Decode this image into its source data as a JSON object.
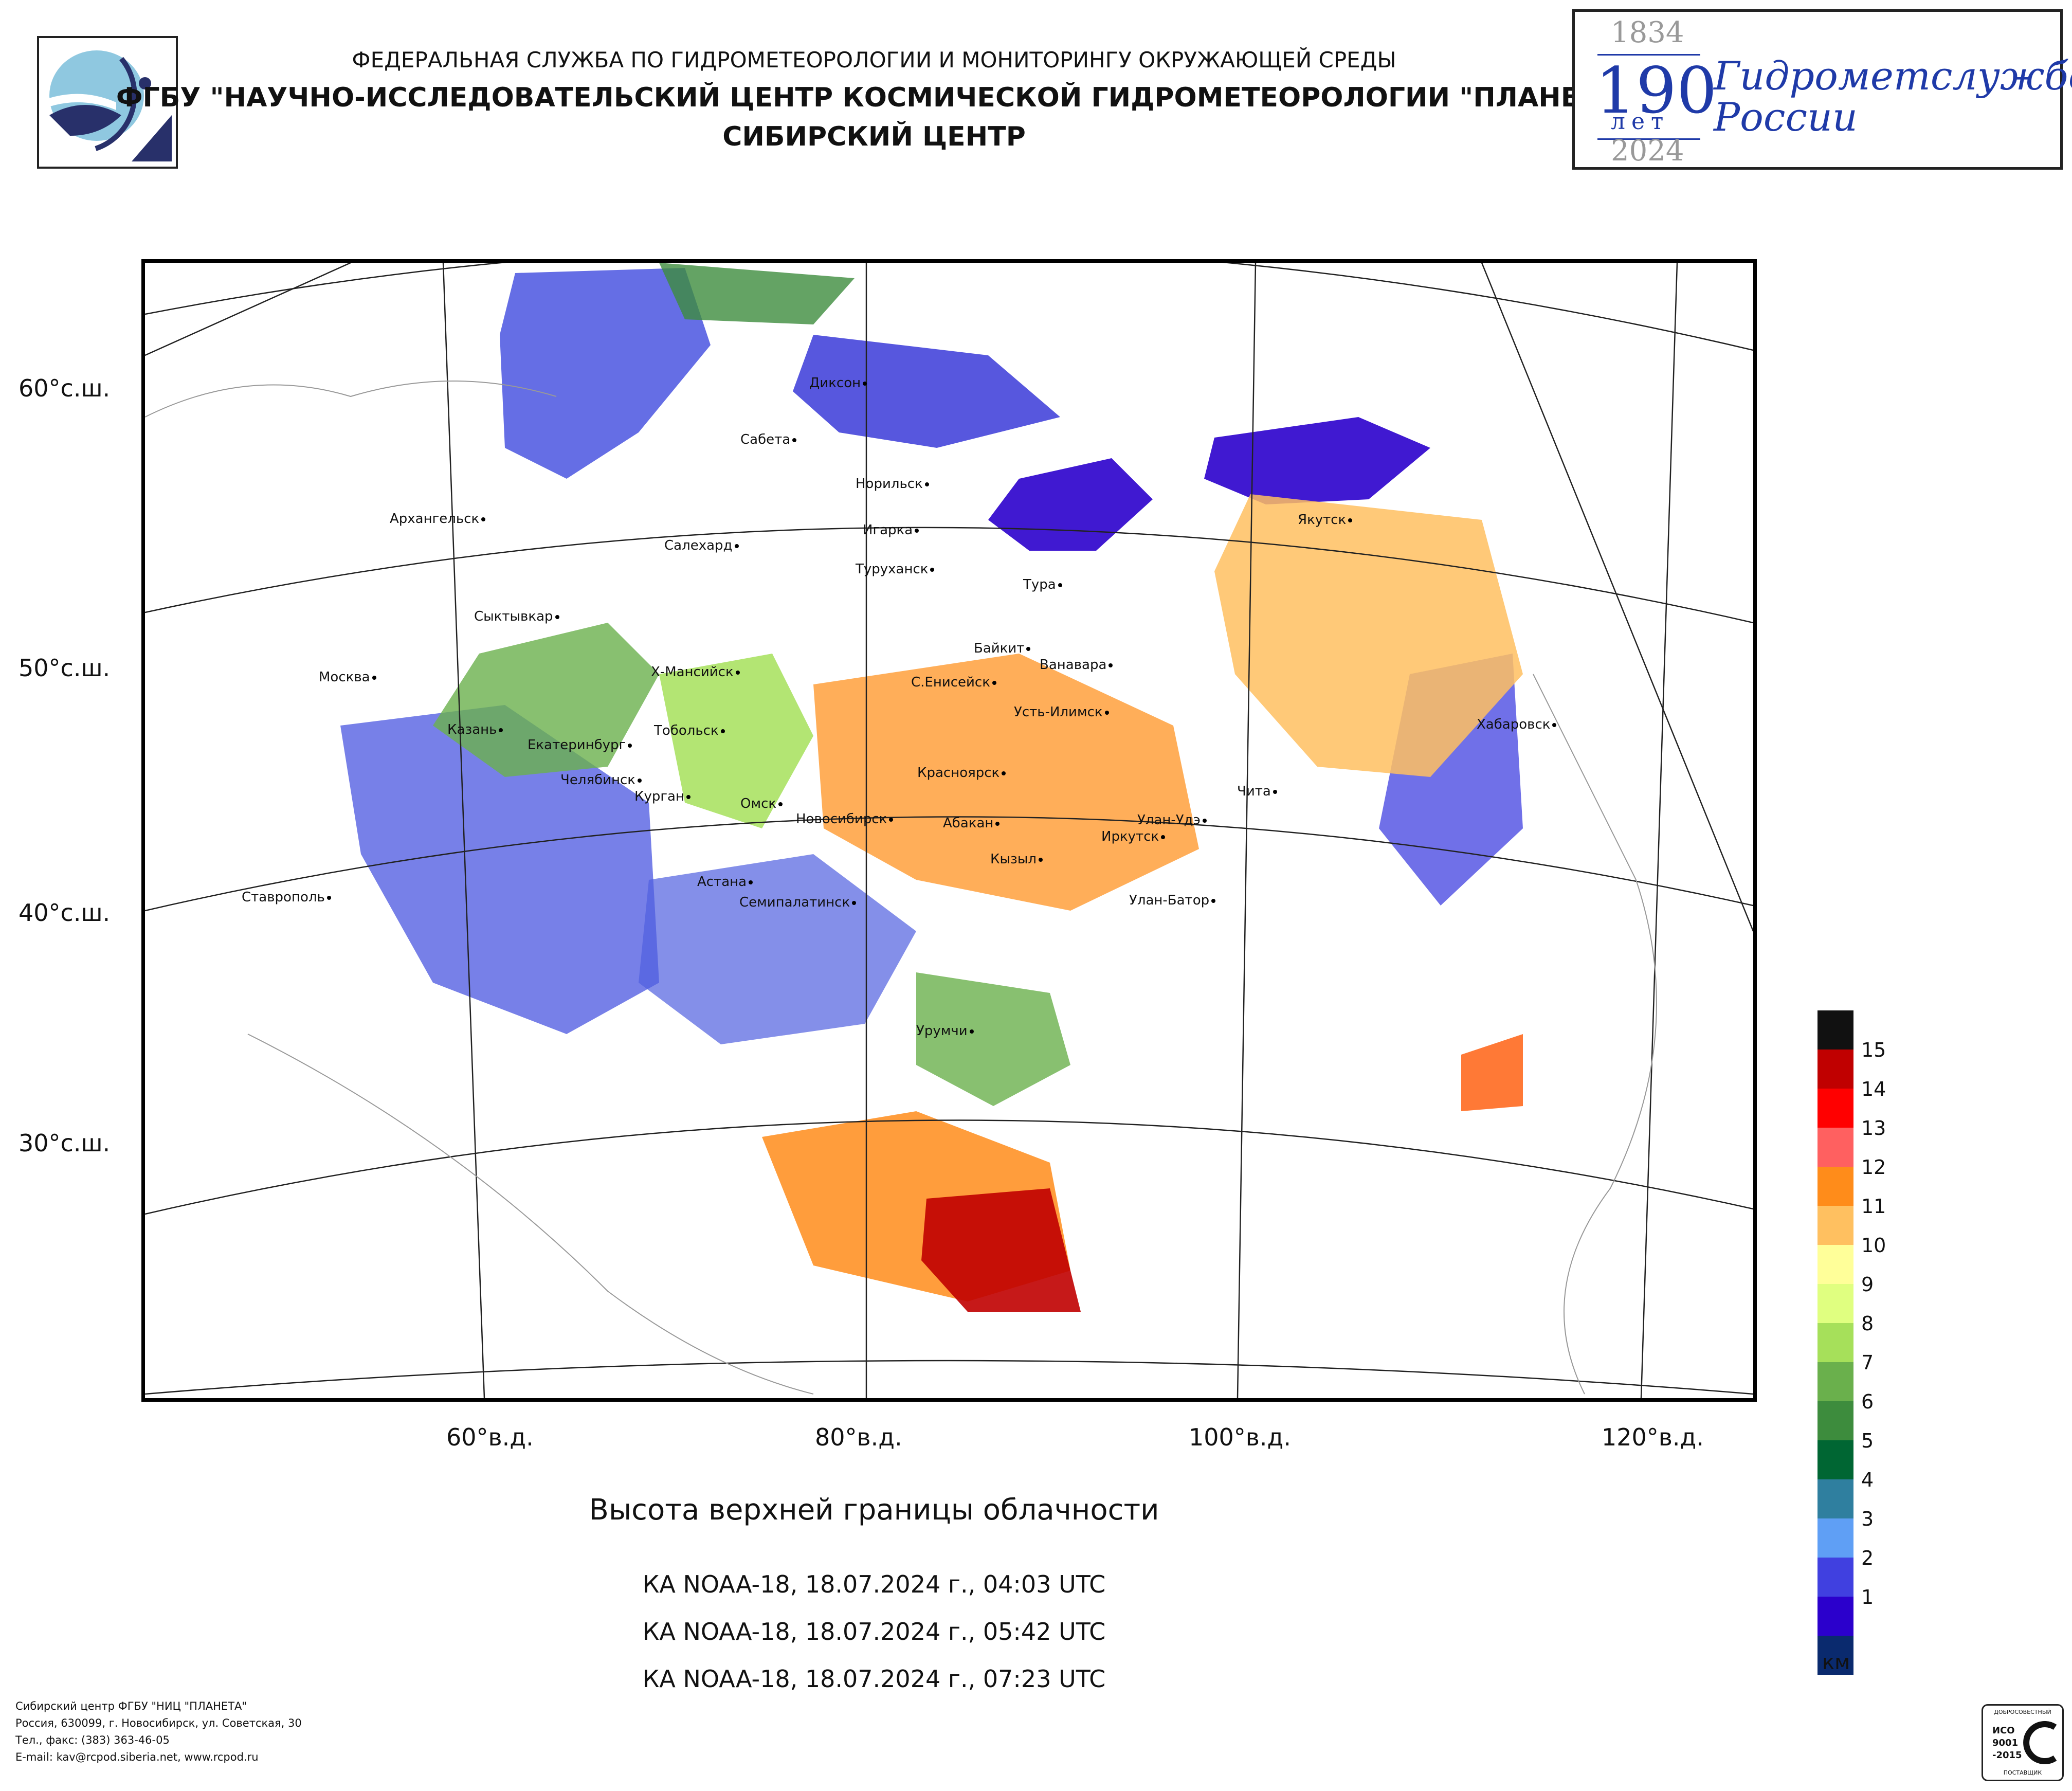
{
  "header": {
    "org_line1": "ФЕДЕРАЛЬНАЯ СЛУЖБА ПО ГИДРОМЕТЕОРОЛОГИИ И МОНИТОРИНГУ ОКРУЖАЮЩЕЙ СРЕДЫ",
    "org_line2": "ФГБУ \"НАУЧНО-ИССЛЕДОВАТЕЛЬСКИЙ ЦЕНТР КОСМИЧЕСКОЙ ГИДРОМЕТЕОРОЛОГИИ \"ПЛАНЕТА\"",
    "org_line3": "СИБИРСКИЙ ЦЕНТР"
  },
  "anniversary": {
    "year_start": "1834",
    "number": "190",
    "unit": "лет",
    "line1": "Гидрометслужбе",
    "line2": "России",
    "year_end": "2024"
  },
  "map": {
    "lat_labels": [
      "60°с.ш.",
      "50°с.ш.",
      "40°с.ш.",
      "30°с.ш."
    ],
    "lon_labels": [
      "60°в.д.",
      "80°в.д.",
      "100°в.д.",
      "120°в.д."
    ],
    "cities": [
      "Диксон",
      "Сабета",
      "Норильск",
      "Архангельск",
      "Игарка",
      "Салехард",
      "Туруханск",
      "Тура",
      "Якутск",
      "Сыктывкар",
      "Байкит",
      "Ванавара",
      "Москва",
      "Х-Мансийск",
      "С.Енисейск",
      "Усть-Илимск",
      "Хабаровск",
      "Казань",
      "Тобольск",
      "Екатеринбург",
      "Красноярск",
      "Чита",
      "Челябинск",
      "Курган",
      "Омск",
      "Новосибирск",
      "Абакан",
      "Улан-Удэ",
      "Иркутск",
      "Кызыл",
      "Астана",
      "Ставрополь",
      "Семипалатинск",
      "Улан-Батор",
      "Урумчи"
    ]
  },
  "legend": {
    "labels": [
      "15",
      "14",
      "13",
      "12",
      "11",
      "10",
      "9",
      "8",
      "7",
      "6",
      "5",
      "4",
      "3",
      "2",
      "1"
    ],
    "colors": [
      "#111111",
      "#c00000",
      "#ff0000",
      "#ff6060",
      "#ff8c1a",
      "#ffc060",
      "#ffff99",
      "#e0ff80",
      "#a6e05a",
      "#6ab04c",
      "#3d8c3d",
      "#006633",
      "#2f7f9f",
      "#5f9ff5",
      "#4040e0",
      "#2b00cc",
      "#0a2a6e"
    ],
    "units": "км"
  },
  "caption": {
    "title": "Высота верхней границы облачности",
    "passes": [
      "КА NOAA-18, 18.07.2024 г., 04:03 UTC",
      "КА NOAA-18, 18.07.2024 г., 05:42 UTC",
      "КА NOAA-18, 18.07.2024 г., 07:23 UTC"
    ]
  },
  "footer": {
    "lines": [
      "Сибирский центр ФГБУ \"НИЦ \"ПЛАНЕТА\"",
      "Россия, 630099, г. Новосибирск, ул. Советская, 30",
      "Тел., факс: (383) 363-46-05",
      "E-mail: kav@rcpod.siberia.net, www.rcpod.ru"
    ]
  },
  "certificate": {
    "top": "ДОБРОСОВЕСТНЫЙ",
    "iso": "ИСО",
    "std1": "9001",
    "std2": "-2015",
    "bottom": "ПОСТАВЩИК"
  }
}
